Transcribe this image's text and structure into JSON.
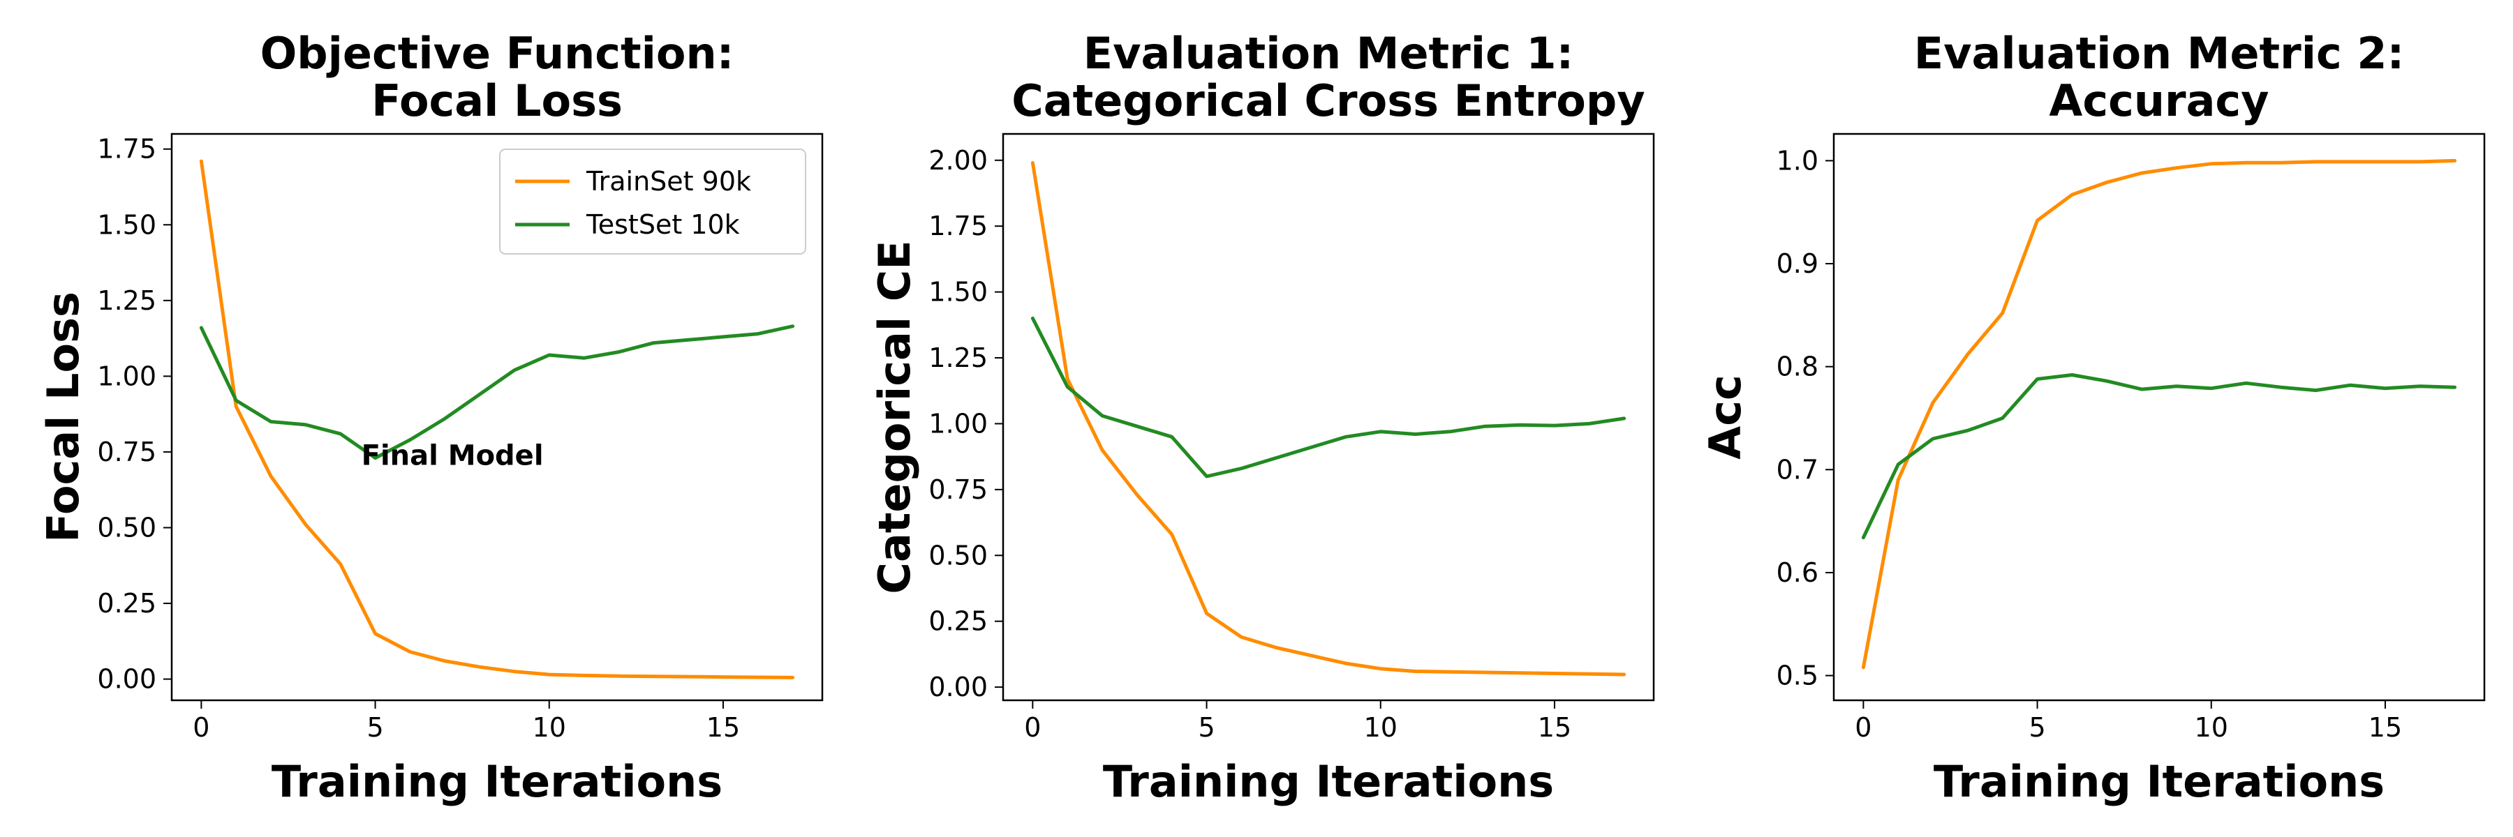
{
  "chart_data": [
    {
      "type": "line",
      "title_lines": [
        "Objective Function:",
        "Focal Loss"
      ],
      "xlabel": "Training Iterations",
      "ylabel": "Focal Loss",
      "xlim": [
        -0.85,
        17.85
      ],
      "ylim": [
        -0.07,
        1.8
      ],
      "xticks": [
        0,
        5,
        10,
        15
      ],
      "xtick_labels": [
        "0",
        "5",
        "10",
        "15"
      ],
      "yticks": [
        0,
        0.25,
        0.5,
        0.75,
        1.0,
        1.25,
        1.5,
        1.75
      ],
      "ytick_labels": [
        "0.00",
        "0.25",
        "0.50",
        "0.75",
        "1.00",
        "1.25",
        "1.50",
        "1.75"
      ],
      "x": [
        0,
        1,
        2,
        3,
        4,
        5,
        6,
        7,
        8,
        9,
        10,
        11,
        12,
        13,
        14,
        15,
        16,
        17
      ],
      "series": [
        {
          "name": "TrainSet 90k",
          "color": "#ff8c00",
          "values": [
            1.71,
            0.9,
            0.67,
            0.51,
            0.38,
            0.15,
            0.09,
            0.06,
            0.04,
            0.025,
            0.015,
            0.012,
            0.01,
            0.009,
            0.008,
            0.007,
            0.006,
            0.005
          ]
        },
        {
          "name": "TestSet 10k",
          "color": "#228b22",
          "values": [
            1.16,
            0.92,
            0.85,
            0.84,
            0.81,
            0.73,
            0.79,
            0.86,
            0.94,
            1.02,
            1.07,
            1.06,
            1.08,
            1.11,
            1.12,
            1.13,
            1.14,
            1.165
          ]
        }
      ],
      "legend": {
        "placement": "top-right",
        "entries": [
          "TrainSet 90k",
          "TestSet 10k"
        ]
      },
      "annotations": [
        {
          "text": "Final Model",
          "x": 4.6,
          "y": 0.74
        }
      ]
    },
    {
      "type": "line",
      "title_lines": [
        "Evaluation Metric 1:",
        "Categorical Cross Entropy"
      ],
      "xlabel": "Training Iterations",
      "ylabel": "Categorical CE",
      "xlim": [
        -0.85,
        17.85
      ],
      "ylim": [
        -0.05,
        2.1
      ],
      "xticks": [
        0,
        5,
        10,
        15
      ],
      "xtick_labels": [
        "0",
        "5",
        "10",
        "15"
      ],
      "yticks": [
        0,
        0.25,
        0.5,
        0.75,
        1.0,
        1.25,
        1.5,
        1.75,
        2.0
      ],
      "ytick_labels": [
        "0.00",
        "0.25",
        "0.50",
        "0.75",
        "1.00",
        "1.25",
        "1.50",
        "1.75",
        "2.00"
      ],
      "x": [
        0,
        1,
        2,
        3,
        4,
        5,
        6,
        7,
        8,
        9,
        10,
        11,
        12,
        13,
        14,
        15,
        16,
        17
      ],
      "series": [
        {
          "name": "TrainSet 90k",
          "color": "#ff8c00",
          "values": [
            1.99,
            1.17,
            0.9,
            0.73,
            0.58,
            0.28,
            0.19,
            0.15,
            0.12,
            0.09,
            0.07,
            0.06,
            0.058,
            0.056,
            0.054,
            0.052,
            0.05,
            0.048
          ]
        },
        {
          "name": "TestSet 10k",
          "color": "#228b22",
          "values": [
            1.4,
            1.14,
            1.03,
            0.99,
            0.95,
            0.8,
            0.83,
            0.87,
            0.91,
            0.95,
            0.97,
            0.96,
            0.97,
            0.99,
            0.995,
            0.993,
            1.0,
            1.02
          ]
        }
      ]
    },
    {
      "type": "line",
      "title_lines": [
        "Evaluation Metric 2:",
        "Accuracy"
      ],
      "xlabel": "Training Iterations",
      "ylabel": "Acc",
      "xlim": [
        -0.85,
        17.85
      ],
      "ylim": [
        0.476,
        1.026
      ],
      "xticks": [
        0,
        5,
        10,
        15
      ],
      "xtick_labels": [
        "0",
        "5",
        "10",
        "15"
      ],
      "yticks": [
        0.5,
        0.6,
        0.7,
        0.8,
        0.9,
        1.0
      ],
      "ytick_labels": [
        "0.5",
        "0.6",
        "0.7",
        "0.8",
        "0.9",
        "1.0"
      ],
      "x": [
        0,
        1,
        2,
        3,
        4,
        5,
        6,
        7,
        8,
        9,
        10,
        11,
        12,
        13,
        14,
        15,
        16,
        17
      ],
      "series": [
        {
          "name": "TrainSet 90k",
          "color": "#ff8c00",
          "values": [
            0.508,
            0.69,
            0.765,
            0.812,
            0.852,
            0.942,
            0.967,
            0.979,
            0.988,
            0.993,
            0.997,
            0.998,
            0.998,
            0.999,
            0.999,
            0.999,
            0.999,
            1.0
          ]
        },
        {
          "name": "TestSet 10k",
          "color": "#228b22",
          "values": [
            0.634,
            0.705,
            0.73,
            0.738,
            0.75,
            0.788,
            0.792,
            0.786,
            0.778,
            0.781,
            0.779,
            0.784,
            0.78,
            0.777,
            0.782,
            0.779,
            0.781,
            0.78
          ]
        }
      ]
    }
  ]
}
